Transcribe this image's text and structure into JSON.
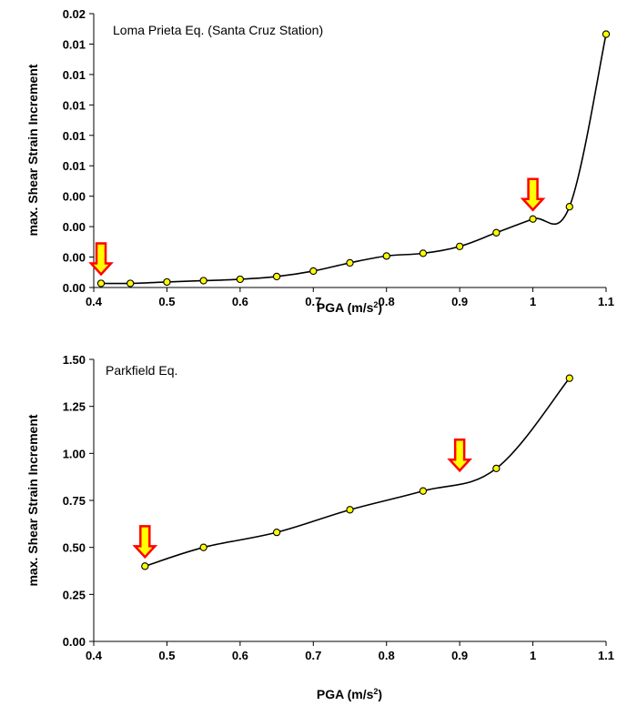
{
  "chart_data": [
    {
      "type": "line",
      "title": "Loma Prieta Eq. (Santa Cruz Station)",
      "xlabel": "PGA (m/s2)",
      "ylabel": "max. Shear Strain Increment",
      "xlim": [
        0.4,
        1.1
      ],
      "ylim": [
        0,
        0.02
      ],
      "x_ticks": [
        "0.4",
        "0.5",
        "0.6",
        "0.7",
        "0.8",
        "0.9",
        "1",
        "1.1"
      ],
      "y_ticks": [
        "0.00",
        "0.00",
        "0.00",
        "0.00",
        "0.01",
        "0.01",
        "0.01",
        "0.01",
        "0.01",
        "0.02"
      ],
      "grid": false,
      "smooth": true,
      "marker_color": "#ffff00",
      "series": [
        {
          "x": [
            0.41,
            0.45,
            0.5,
            0.55,
            0.6,
            0.65,
            0.7,
            0.75,
            0.8,
            0.85,
            0.9,
            0.95,
            1.0,
            1.05,
            1.1
          ],
          "y": [
            0.0003,
            0.0003,
            0.0004,
            0.0005,
            0.0006,
            0.0008,
            0.0012,
            0.0018,
            0.0023,
            0.0025,
            0.003,
            0.004,
            0.005,
            0.0059,
            0.0185
          ]
        }
      ],
      "arrows_at_x": [
        0.41,
        1.0
      ]
    },
    {
      "type": "line",
      "title": "Parkfield Eq.",
      "xlabel": "PGA (m/s2)",
      "ylabel": "max. Shear Strain Increment",
      "xlim": [
        0.4,
        1.1
      ],
      "ylim": [
        0,
        1.5
      ],
      "x_ticks": [
        "0.4",
        "0.5",
        "0.6",
        "0.7",
        "0.8",
        "0.9",
        "1",
        "1.1"
      ],
      "y_ticks": [
        "0.00",
        "0.25",
        "0.50",
        "0.75",
        "1.00",
        "1.25",
        "1.50"
      ],
      "grid": false,
      "smooth": true,
      "marker_color": "#ffff00",
      "series": [
        {
          "x": [
            0.47,
            0.55,
            0.65,
            0.75,
            0.85,
            0.95,
            1.05
          ],
          "y": [
            0.4,
            0.5,
            0.58,
            0.7,
            0.8,
            0.92,
            1.4
          ]
        }
      ],
      "arrows_at_x": [
        0.47,
        0.9
      ]
    }
  ]
}
